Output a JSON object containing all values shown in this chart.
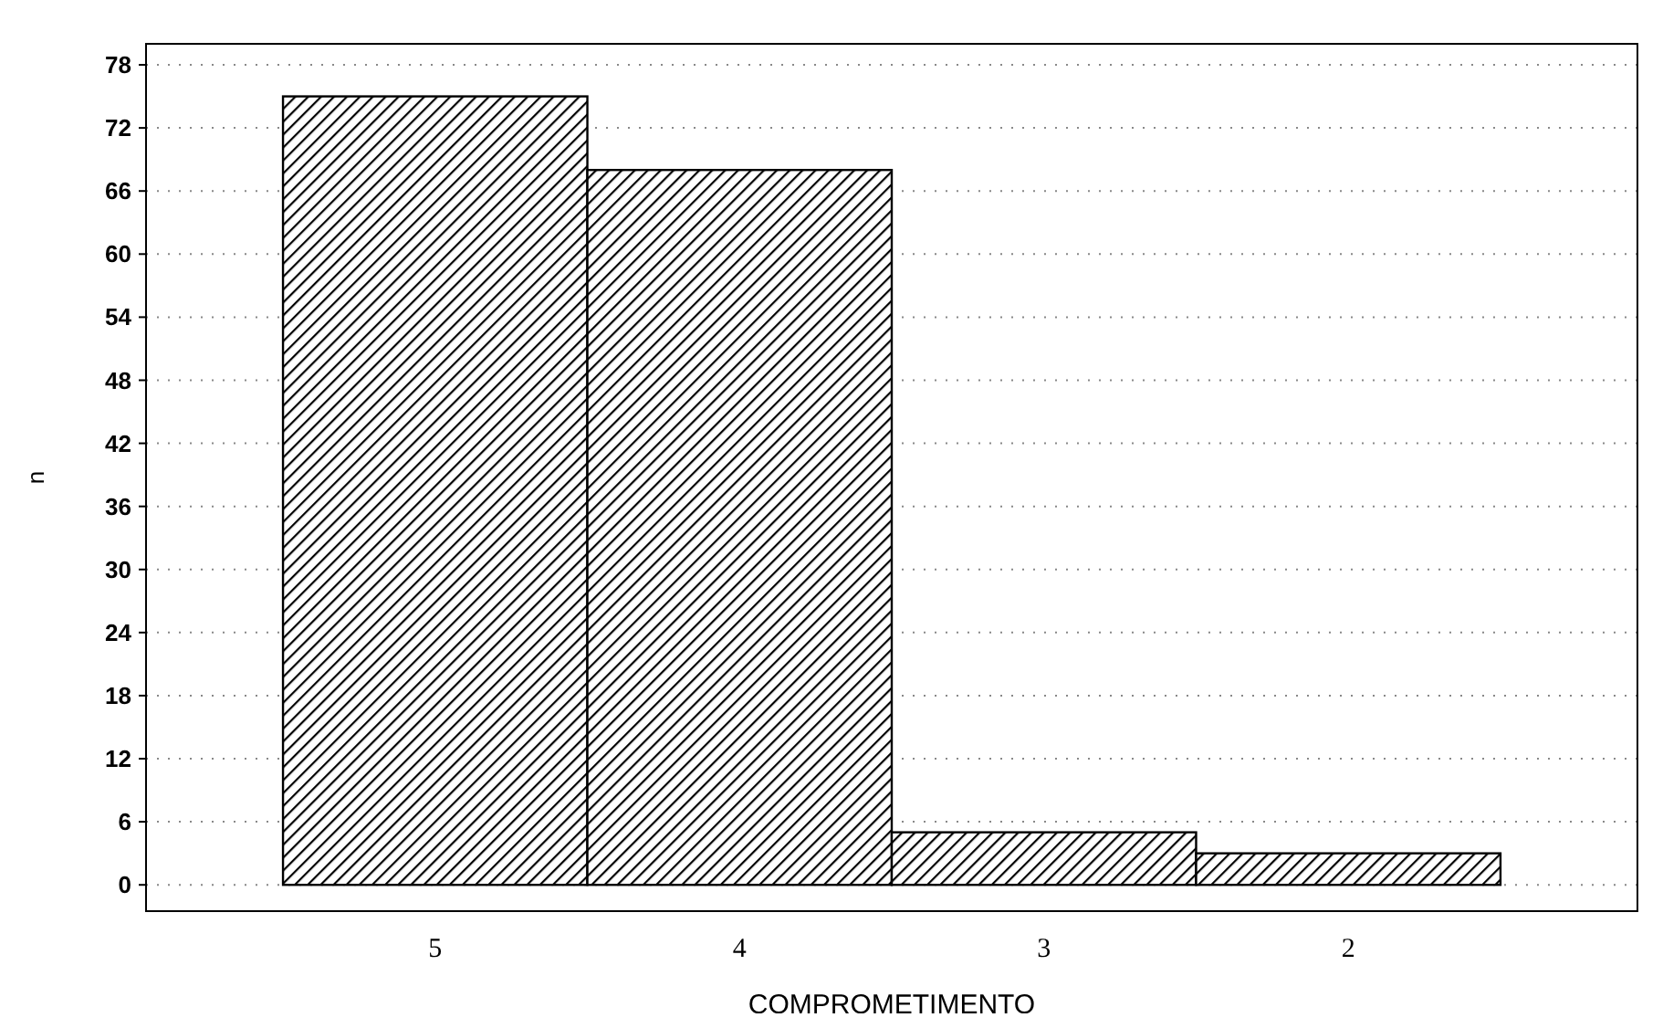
{
  "chart_data": {
    "type": "bar",
    "xlabel": "COMPROMETIMENTO",
    "ylabel": "n",
    "categories": [
      "5",
      "4",
      "3",
      "2"
    ],
    "values": [
      75,
      68,
      5,
      3
    ],
    "color": "#000000",
    "ylim": [
      -2.5,
      80
    ],
    "yticks": [
      0,
      6,
      12,
      18,
      24,
      30,
      36,
      42,
      48,
      54,
      60,
      66,
      72,
      78
    ],
    "grid": "y"
  }
}
